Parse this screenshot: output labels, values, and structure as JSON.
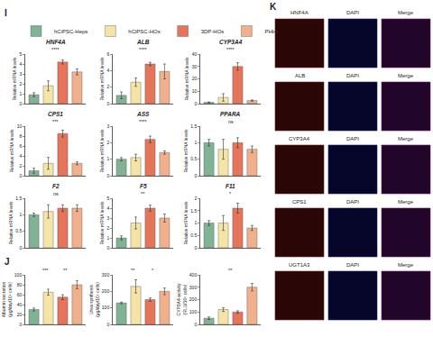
{
  "panels": [
    "I",
    "J",
    "K"
  ],
  "legend": "top",
  "chart_data": [
    {
      "type": "bar",
      "title": "HNF4A",
      "y_label": [
        "Relative mRNA levels"
      ],
      "categories": [
        "hCiPSC-Heps",
        "hCiPSC-HOs",
        "3DP-HOs",
        "PHHs"
      ],
      "colors": [
        "#7fb394",
        "#f4e4a6",
        "#e5745a",
        "#f0b08c"
      ],
      "values": [
        0.9,
        1.8,
        4.2,
        3.2
      ],
      "errors": [
        0.2,
        0.5,
        0.2,
        0.3
      ],
      "ylim": [
        0,
        5
      ],
      "yticks": [
        0,
        1,
        2,
        3,
        4,
        5
      ],
      "tick_labels": "y",
      "grid": false,
      "significance": [
        "****"
      ]
    },
    {
      "type": "bar",
      "title": "ALB",
      "y_label": [
        "Relative mRNA levels"
      ],
      "categories": [
        "hCiPSC-Heps",
        "hCiPSC-HOs",
        "3DP-HOs",
        "PHHs"
      ],
      "colors": [
        "#7fb394",
        "#f4e4a6",
        "#e5745a",
        "#f0b08c"
      ],
      "values": [
        1.0,
        2.6,
        4.8,
        3.9
      ],
      "errors": [
        0.4,
        0.5,
        0.2,
        0.9
      ],
      "ylim": [
        0,
        6
      ],
      "yticks": [
        0,
        2,
        4,
        6
      ],
      "tick_labels": "y",
      "grid": false,
      "significance": [
        "****"
      ]
    },
    {
      "type": "bar",
      "title": "CYP3A4",
      "y_label": [
        "Relative mRNA levels"
      ],
      "categories": [
        "hCiPSC-Heps",
        "hCiPSC-HOs",
        "3DP-HOs",
        "PHHs"
      ],
      "colors": [
        "#7fb394",
        "#f4e4a6",
        "#e5745a",
        "#f0b08c"
      ],
      "values": [
        1.0,
        5.0,
        30.0,
        2.5
      ],
      "errors": [
        0.3,
        3.0,
        3.0,
        0.5
      ],
      "ylim": [
        0,
        40
      ],
      "yticks": [
        0,
        10,
        20,
        30,
        40
      ],
      "tick_labels": "y",
      "grid": false,
      "significance": [
        "****"
      ]
    },
    {
      "type": "bar",
      "title": "CPS1",
      "y_label": [
        "Relative mRNA levels"
      ],
      "categories": [
        "hCiPSC-Heps",
        "hCiPSC-HOs",
        "3DP-HOs",
        "PHHs"
      ],
      "colors": [
        "#7fb394",
        "#f4e4a6",
        "#e5745a",
        "#f0b08c"
      ],
      "values": [
        1.0,
        2.5,
        8.5,
        2.5
      ],
      "errors": [
        0.5,
        1.2,
        0.7,
        0.3
      ],
      "ylim": [
        0,
        10
      ],
      "yticks": [
        0,
        2,
        4,
        6,
        8,
        10
      ],
      "tick_labels": "y",
      "grid": false,
      "significance": [
        "***"
      ]
    },
    {
      "type": "bar",
      "title": "ASS",
      "y_label": [
        "Relative mRNA levels"
      ],
      "categories": [
        "hCiPSC-Heps",
        "hCiPSC-HOs",
        "3DP-HOs",
        "PHHs"
      ],
      "colors": [
        "#7fb394",
        "#f4e4a6",
        "#e5745a",
        "#f0b08c"
      ],
      "values": [
        1.0,
        1.1,
        2.2,
        1.4
      ],
      "errors": [
        0.1,
        0.2,
        0.2,
        0.1
      ],
      "ylim": [
        0,
        3
      ],
      "yticks": [
        0,
        1,
        2,
        3
      ],
      "tick_labels": "y",
      "grid": false,
      "significance": [
        "****"
      ]
    },
    {
      "type": "bar",
      "title": "PPARA",
      "y_label": [
        "Relative mRNA levels"
      ],
      "categories": [
        "hCiPSC-Heps",
        "hCiPSC-HOs",
        "3DP-HOs",
        "PHHs"
      ],
      "colors": [
        "#7fb394",
        "#f4e4a6",
        "#e5745a",
        "#f0b08c"
      ],
      "values": [
        1.0,
        0.8,
        1.0,
        0.8
      ],
      "errors": [
        0.1,
        0.3,
        0.15,
        0.1
      ],
      "ylim": [
        0,
        1.5
      ],
      "yticks": [
        0,
        0.5,
        1,
        1.5
      ],
      "tick_labels": "y",
      "grid": false,
      "significance": [
        "ns"
      ]
    },
    {
      "type": "bar",
      "title": "F2",
      "y_label": [
        "Relative mRNA levels"
      ],
      "categories": [
        "hCiPSC-Heps",
        "hCiPSC-HOs",
        "3DP-HOs",
        "PHHs"
      ],
      "colors": [
        "#7fb394",
        "#f4e4a6",
        "#e5745a",
        "#f0b08c"
      ],
      "values": [
        1.0,
        1.1,
        1.2,
        1.2
      ],
      "errors": [
        0.05,
        0.2,
        0.1,
        0.1
      ],
      "ylim": [
        0,
        1.5
      ],
      "yticks": [
        0,
        0.5,
        1,
        1.5
      ],
      "tick_labels": "y",
      "grid": false,
      "significance": [
        "ns"
      ]
    },
    {
      "type": "bar",
      "title": "F5",
      "y_label": [
        "Relative mRNA levels"
      ],
      "categories": [
        "hCiPSC-Heps",
        "hCiPSC-HOs",
        "3DP-HOs",
        "PHHs"
      ],
      "colors": [
        "#7fb394",
        "#f4e4a6",
        "#e5745a",
        "#f0b08c"
      ],
      "values": [
        1.0,
        2.5,
        4.0,
        3.0
      ],
      "errors": [
        0.2,
        0.6,
        0.3,
        0.4
      ],
      "ylim": [
        0,
        5
      ],
      "yticks": [
        0,
        1,
        2,
        3,
        4,
        5
      ],
      "tick_labels": "y",
      "grid": false,
      "significance": [
        "**"
      ]
    },
    {
      "type": "bar",
      "title": "F11",
      "y_label": [
        "Relative mRNA levels"
      ],
      "categories": [
        "hCiPSC-Heps",
        "hCiPSC-HOs",
        "3DP-HOs",
        "PHHs"
      ],
      "colors": [
        "#7fb394",
        "#f4e4a6",
        "#e5745a",
        "#f0b08c"
      ],
      "values": [
        1.0,
        1.0,
        1.6,
        0.8
      ],
      "errors": [
        0.1,
        0.3,
        0.2,
        0.1
      ],
      "ylim": [
        0,
        2
      ],
      "yticks": [
        0,
        0.5,
        1,
        1.5,
        2
      ],
      "tick_labels": "y",
      "grid": false,
      "significance": [
        "*"
      ]
    },
    {
      "type": "bar",
      "y_label": [
        "Albumin secretion",
        "(μg/day/10⁶ cells)"
      ],
      "categories": [
        "hCiPSC-Heps",
        "hCiPSC-HOs",
        "3DP-HOs",
        "PHHs"
      ],
      "colors": [
        "#7fb394",
        "#f4e4a6",
        "#e5745a",
        "#f0b08c"
      ],
      "values": [
        30,
        65,
        55,
        80
      ],
      "errors": [
        3,
        6,
        5,
        8
      ],
      "ylim": [
        0,
        100
      ],
      "yticks": [
        0,
        20,
        40,
        60,
        80,
        100
      ],
      "tick_labels": "y",
      "grid": false,
      "significance": [
        "***",
        "**"
      ]
    },
    {
      "type": "bar",
      "y_label": [
        "Urea synthesis",
        "(μg/day/10⁶ cells)"
      ],
      "categories": [
        "hCiPSC-Heps",
        "hCiPSC-HOs",
        "3DP-HOs",
        "PHHs"
      ],
      "colors": [
        "#7fb394",
        "#f4e4a6",
        "#e5745a",
        "#f0b08c"
      ],
      "values": [
        130,
        230,
        150,
        200
      ],
      "errors": [
        5,
        40,
        10,
        20
      ],
      "ylim": [
        0,
        300
      ],
      "yticks": [
        0,
        100,
        200,
        300
      ],
      "tick_labels": "y",
      "grid": false,
      "significance": [
        "**",
        "*"
      ]
    },
    {
      "type": "bar",
      "y_label": [
        "CYP3A4 activity",
        "(RLU/10⁶ cells)"
      ],
      "categories": [
        "hCiPSC-Heps",
        "hCiPSC-HOs",
        "3DP-HOs",
        "PHHs"
      ],
      "colors": [
        "#7fb394",
        "#f4e4a6",
        "#e5745a",
        "#f0b08c"
      ],
      "values": [
        50,
        120,
        100,
        300
      ],
      "errors": [
        10,
        15,
        10,
        30
      ],
      "ylim": [
        0,
        400
      ],
      "yticks": [
        0,
        100,
        200,
        300,
        400
      ],
      "tick_labels": "y",
      "grid": false,
      "significance": [
        "**"
      ]
    }
  ],
  "image_rows": [
    [
      "HNF4A",
      "DAPI",
      "Merge"
    ],
    [
      "ALB",
      "DAPI",
      "Merge"
    ],
    [
      "CYP3A4",
      "DAPI",
      "Merge"
    ],
    [
      "CPS1",
      "DAPI",
      "Merge"
    ],
    [
      "UGT1A3",
      "DAPI",
      "Merge"
    ]
  ]
}
